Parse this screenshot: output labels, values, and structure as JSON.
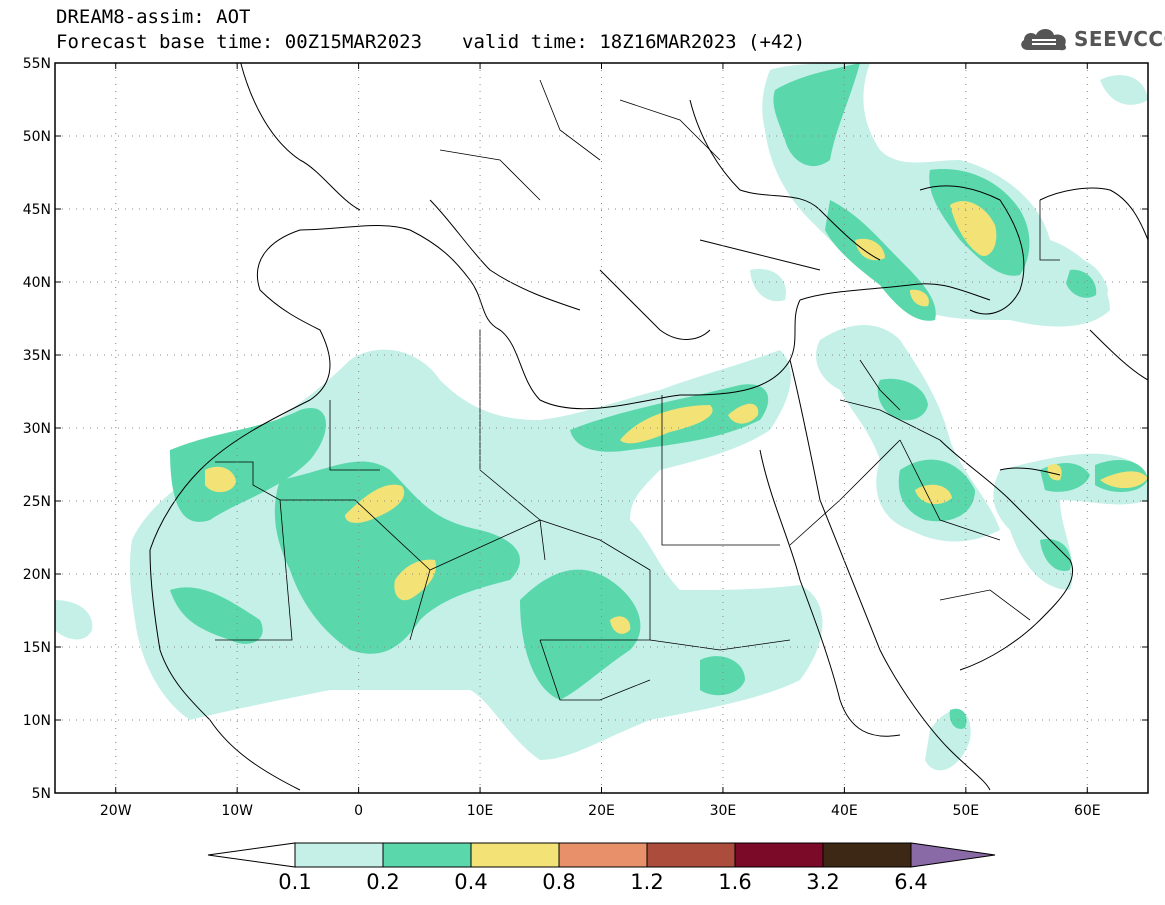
{
  "header": {
    "title": "DREAM8-assim: AOT",
    "base_time": "Forecast base time: 00Z15MAR2023",
    "valid_time": "valid time: 18Z16MAR2023 (+42)"
  },
  "logo": {
    "text": "SEEVCCC",
    "icon": "cloud-icon"
  },
  "map": {
    "lon_range": [
      -25,
      65
    ],
    "lat_range": [
      5,
      55
    ],
    "lon_ticks": [
      "20W",
      "10W",
      "0",
      "10E",
      "20E",
      "30E",
      "40E",
      "50E",
      "60E"
    ],
    "lat_ticks": [
      "55N",
      "50N",
      "45N",
      "40N",
      "35N",
      "30N",
      "25N",
      "20N",
      "15N",
      "10N",
      "5N"
    ],
    "grid": "dotted"
  },
  "colorbar": {
    "labels": [
      "0.1",
      "0.2",
      "0.4",
      "0.8",
      "1.2",
      "1.6",
      "3.2",
      "6.4"
    ],
    "colors": [
      "#c4f0e8",
      "#5ad8ac",
      "#f3e377",
      "#e8906a",
      "#ac4c3c",
      "#7a0a28",
      "#3c2814",
      "#8a6aa6"
    ],
    "under_color": "#ffffff"
  }
}
